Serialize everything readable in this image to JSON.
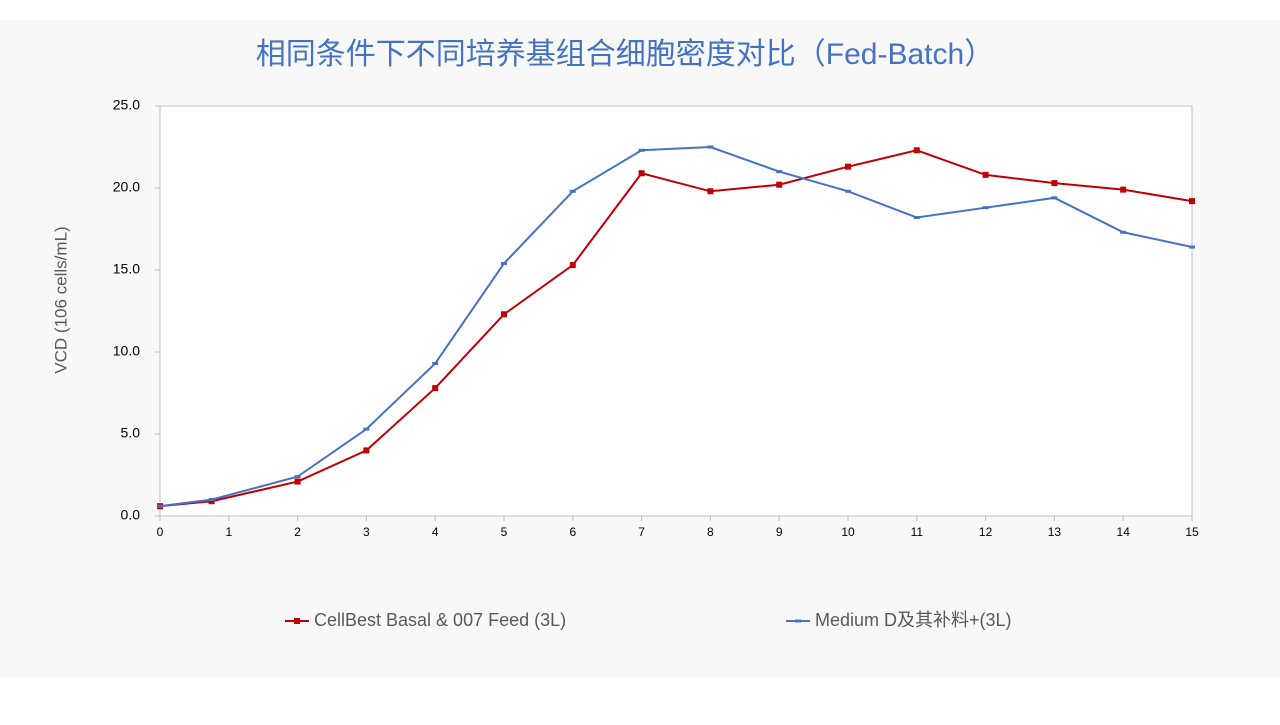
{
  "chart_data": {
    "type": "line",
    "title": "相同条件下不同培养基组合细胞密度对比（Fed-Batch）",
    "y_label": "VCD (106 cells/mL)",
    "x": [
      0,
      0.75,
      2,
      3,
      4,
      5,
      6,
      7,
      8,
      9,
      10,
      11,
      12,
      13,
      14,
      15
    ],
    "series": [
      {
        "name": "CellBest Basal & 007 Feed (3L)",
        "color": "#c00000",
        "marker": "square",
        "values": [
          0.6,
          0.9,
          2.1,
          4.0,
          7.8,
          12.3,
          15.3,
          20.9,
          19.8,
          20.2,
          21.3,
          22.3,
          20.8,
          20.3,
          19.9,
          19.2
        ]
      },
      {
        "name": "Medium D及其补料+(3L)",
        "color": "#4472c4",
        "marker": "dash",
        "values": [
          0.6,
          1.0,
          2.4,
          5.3,
          9.3,
          15.4,
          19.8,
          22.3,
          22.5,
          21.0,
          19.8,
          18.2,
          18.8,
          19.4,
          17.3,
          16.4
        ]
      }
    ],
    "xlim": [
      0,
      15
    ],
    "xticks": [
      0,
      1,
      2,
      3,
      4,
      5,
      6,
      7,
      8,
      9,
      10,
      11,
      12,
      13,
      14,
      15
    ],
    "ylim": [
      0,
      25
    ],
    "yticks": [
      {
        "value": 0,
        "label": "0.0"
      },
      {
        "value": 5,
        "label": "5.0"
      },
      {
        "value": 10,
        "label": "10.0"
      },
      {
        "value": 15,
        "label": "15.0"
      },
      {
        "value": 20,
        "label": "20.0"
      },
      {
        "value": 25,
        "label": "25.0"
      }
    ],
    "grid": false,
    "legend": "bottom"
  }
}
